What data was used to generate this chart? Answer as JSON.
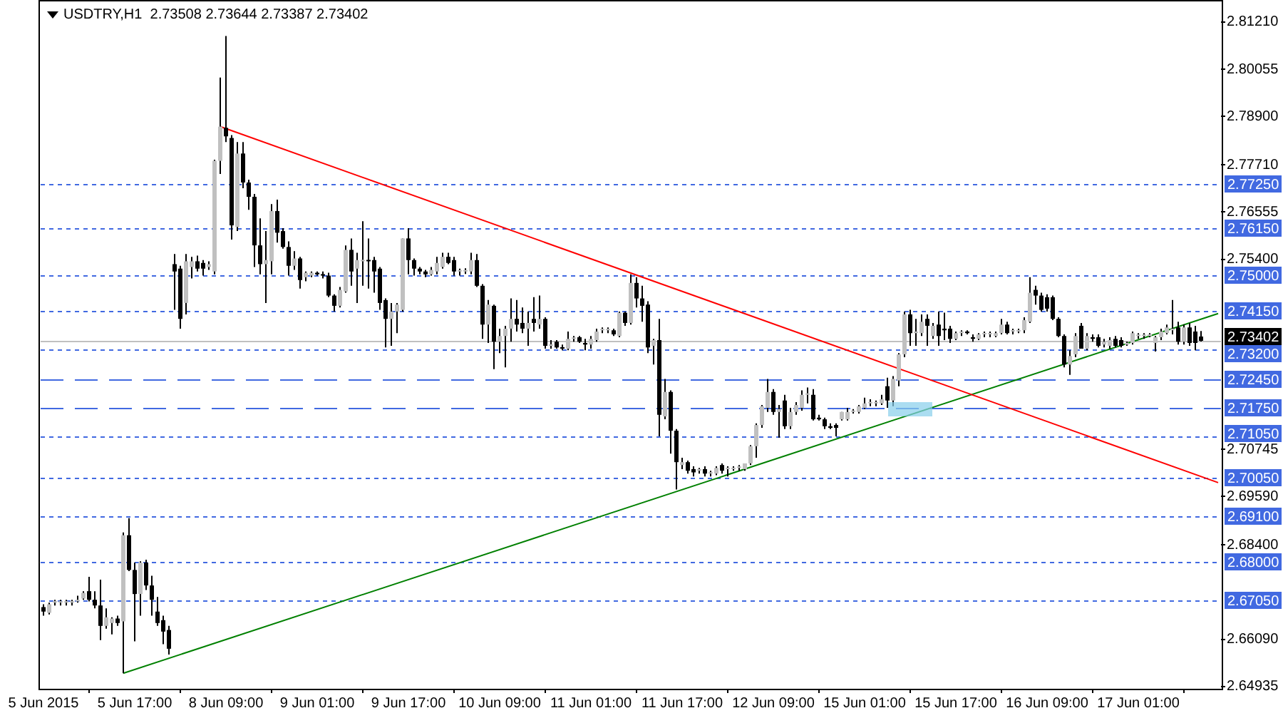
{
  "chart_data": {
    "type": "candlestick",
    "title": "USDTRY,H1  2.73508 2.73644 2.73387 2.73402",
    "categories": [
      "5 Jun 2015",
      null,
      null,
      null,
      null,
      null,
      null,
      null,
      null,
      null,
      null,
      null,
      null,
      null,
      null,
      null,
      "5 Jun 17:00",
      null,
      null,
      null,
      null,
      null,
      null,
      null,
      null,
      null,
      null,
      null,
      null,
      null,
      null,
      null,
      "8 Jun 09:00",
      null,
      null,
      null,
      null,
      null,
      null,
      null,
      null,
      null,
      null,
      null,
      null,
      null,
      null,
      null,
      "9 Jun 01:00",
      null,
      null,
      null,
      null,
      null,
      null,
      null,
      null,
      null,
      null,
      null,
      null,
      null,
      null,
      null,
      "9 Jun 17:00",
      null,
      null,
      null,
      null,
      null,
      null,
      null,
      null,
      null,
      null,
      null,
      null,
      null,
      null,
      null,
      "10 Jun 09:00",
      null,
      null,
      null,
      null,
      null,
      null,
      null,
      null,
      null,
      null,
      null,
      null,
      null,
      null,
      null,
      "11 Jun 01:00",
      null,
      null,
      null,
      null,
      null,
      null,
      null,
      null,
      null,
      null,
      null,
      null,
      null,
      null,
      null,
      "11 Jun 17:00",
      null,
      null,
      null,
      null,
      null,
      null,
      null,
      null,
      null,
      null,
      null,
      null,
      null,
      null,
      null,
      "12 Jun 09:00",
      null,
      null,
      null,
      null,
      null,
      null,
      null,
      null,
      null,
      null,
      null,
      null,
      null,
      null,
      null,
      "15 Jun 01:00",
      null,
      null,
      null,
      null,
      null,
      null,
      null,
      null,
      null,
      null,
      null,
      null,
      null,
      null,
      null,
      "15 Jun 17:00",
      null,
      null,
      null,
      null,
      null,
      null,
      null,
      null,
      null,
      null,
      null,
      null,
      null,
      null,
      null,
      "16 Jun 09:00",
      null,
      null,
      null,
      null,
      null,
      null,
      null,
      null,
      null,
      null,
      null,
      null,
      null,
      null,
      null,
      "17 Jun 01:00",
      null,
      null,
      null,
      null,
      null,
      null,
      null,
      null,
      null,
      null,
      null,
      null,
      null,
      null
    ],
    "ohlc": [
      [
        2.6688,
        2.6695,
        2.6667,
        2.6677
      ],
      [
        2.6674,
        2.6699,
        2.667,
        2.6695
      ],
      [
        2.6699,
        2.6706,
        2.6692,
        2.6699
      ],
      [
        2.6699,
        2.6706,
        2.6692,
        2.6699
      ],
      [
        2.6699,
        2.6706,
        2.6692,
        2.67
      ],
      [
        2.6699,
        2.6706,
        2.6692,
        2.6702
      ],
      [
        2.6702,
        2.6716,
        2.6699,
        2.6706
      ],
      [
        2.6709,
        2.6727,
        2.6706,
        2.6723
      ],
      [
        2.6727,
        2.6762,
        2.6702,
        2.6706
      ],
      [
        2.6706,
        2.6727,
        2.6685,
        2.6692
      ],
      [
        2.6692,
        2.6755,
        2.6607,
        2.6642
      ],
      [
        2.6642,
        2.6685,
        2.6635,
        2.6663
      ],
      [
        2.6649,
        2.6663,
        2.6621,
        2.666
      ],
      [
        2.666,
        2.6667,
        2.6642,
        2.6649
      ],
      [
        2.6653,
        2.6871,
        2.6526,
        2.6864
      ],
      [
        2.6864,
        2.6906,
        2.6776,
        2.6779
      ],
      [
        2.6779,
        2.6797,
        2.6604,
        2.672
      ],
      [
        2.672,
        2.68,
        2.6667,
        2.6797
      ],
      [
        2.6797,
        2.6804,
        2.673,
        2.6741
      ],
      [
        2.6741,
        2.6765,
        2.6667,
        2.6706
      ],
      [
        2.6677,
        2.6713,
        2.6642,
        2.6649
      ],
      [
        2.6656,
        2.6667,
        2.6597,
        2.6628
      ],
      [
        2.6632,
        2.6642,
        2.6572,
        2.6586
      ],
      [
        2.7528,
        2.7553,
        2.7416,
        2.751
      ],
      [
        2.7517,
        2.7524,
        2.737,
        2.7394
      ],
      [
        2.7433,
        2.7553,
        2.7405,
        2.7535
      ],
      [
        2.7521,
        2.7546,
        2.7493,
        2.7535
      ],
      [
        2.7535,
        2.7549,
        2.751,
        2.7517
      ],
      [
        2.7531,
        2.7538,
        2.75,
        2.7517
      ],
      [
        2.7521,
        2.7535,
        2.7514,
        2.7528
      ],
      [
        2.751,
        2.7784,
        2.7503,
        2.7781
      ],
      [
        2.7781,
        2.7985,
        2.7749,
        2.7865
      ],
      [
        2.7862,
        2.8087,
        2.7827,
        2.7841
      ],
      [
        2.7837,
        2.7844,
        2.7588,
        2.7623
      ],
      [
        2.7619,
        2.7827,
        2.7609,
        2.7799
      ],
      [
        2.7799,
        2.7827,
        2.7714,
        2.7728
      ],
      [
        2.7728,
        2.7735,
        2.7661,
        2.7693
      ],
      [
        2.7693,
        2.77,
        2.7521,
        2.7574
      ],
      [
        2.7574,
        2.764,
        2.7503,
        2.7528
      ],
      [
        2.7528,
        2.7609,
        2.7433,
        2.7538
      ],
      [
        2.7535,
        2.7675,
        2.7503,
        2.7658
      ],
      [
        2.7658,
        2.7686,
        2.7581,
        2.7605
      ],
      [
        2.7609,
        2.7616,
        2.7566,
        2.757
      ],
      [
        2.757,
        2.7584,
        2.75,
        2.7524
      ],
      [
        2.7524,
        2.756,
        2.7514,
        2.7542
      ],
      [
        2.7542,
        2.7546,
        2.7468,
        2.7489
      ],
      [
        2.7496,
        2.751,
        2.7486,
        2.7507
      ],
      [
        2.75,
        2.751,
        2.7496,
        2.7507
      ],
      [
        2.7507,
        2.751,
        2.75,
        2.7503
      ],
      [
        2.7503,
        2.751,
        2.7493,
        2.75
      ],
      [
        2.75,
        2.7507,
        2.7447,
        2.7451
      ],
      [
        2.7451,
        2.7454,
        2.7412,
        2.7426
      ],
      [
        2.7426,
        2.7472,
        2.7422,
        2.7465
      ],
      [
        2.7461,
        2.7574,
        2.7458,
        2.7563
      ],
      [
        2.7563,
        2.7591,
        2.7475,
        2.751
      ],
      [
        2.7517,
        2.7556,
        2.7433,
        2.7538
      ],
      [
        2.7535,
        2.7633,
        2.7475,
        2.7538
      ],
      [
        2.7538,
        2.7591,
        2.7468,
        2.7535
      ],
      [
        2.7538,
        2.7546,
        2.7458,
        2.751
      ],
      [
        2.7517,
        2.7521,
        2.7416,
        2.7433
      ],
      [
        2.744,
        2.7444,
        2.7324,
        2.7394
      ],
      [
        2.7394,
        2.7433,
        2.7328,
        2.7412
      ],
      [
        2.7412,
        2.7433,
        2.7359,
        2.7429
      ],
      [
        2.7416,
        2.7591,
        2.7412,
        2.7591
      ],
      [
        2.7591,
        2.7616,
        2.7503,
        2.7538
      ],
      [
        2.7538,
        2.7542,
        2.75,
        2.7517
      ],
      [
        2.7517,
        2.7521,
        2.7503,
        2.751
      ],
      [
        2.751,
        2.7514,
        2.7496,
        2.7503
      ],
      [
        2.7503,
        2.7521,
        2.75,
        2.7514
      ],
      [
        2.751,
        2.7546,
        2.7503,
        2.7531
      ],
      [
        2.7521,
        2.7556,
        2.7517,
        2.7546
      ],
      [
        2.7546,
        2.7556,
        2.7528,
        2.7531
      ],
      [
        2.7538,
        2.7546,
        2.75,
        2.751
      ],
      [
        2.751,
        2.7517,
        2.75,
        2.751
      ],
      [
        2.751,
        2.7518,
        2.7504,
        2.751
      ],
      [
        2.751,
        2.7556,
        2.7503,
        2.7538
      ],
      [
        2.7538,
        2.7553,
        2.7472,
        2.7475
      ],
      [
        2.7475,
        2.7479,
        2.7345,
        2.738
      ],
      [
        2.738,
        2.744,
        2.7335,
        2.7429
      ],
      [
        2.7426,
        2.7429,
        2.7271,
        2.7338
      ],
      [
        2.7338,
        2.737,
        2.731,
        2.7352
      ],
      [
        2.7352,
        2.7377,
        2.7275,
        2.737
      ],
      [
        2.737,
        2.7444,
        2.7338,
        2.7394
      ],
      [
        2.7394,
        2.744,
        2.7363,
        2.738
      ],
      [
        2.7384,
        2.7422,
        2.7359,
        2.737
      ],
      [
        2.737,
        2.7412,
        2.7328,
        2.7384
      ],
      [
        2.7394,
        2.7447,
        2.7363,
        2.7384
      ],
      [
        2.738,
        2.7451,
        2.737,
        2.7394
      ],
      [
        2.7394,
        2.7398,
        2.7321,
        2.7328
      ],
      [
        2.7328,
        2.7342,
        2.7321,
        2.7331
      ],
      [
        2.7338,
        2.7342,
        2.7321,
        2.7324
      ],
      [
        2.7324,
        2.7331,
        2.7317,
        2.7321
      ],
      [
        2.7321,
        2.7363,
        2.7317,
        2.7345
      ],
      [
        2.7345,
        2.7352,
        2.7338,
        2.7345
      ],
      [
        2.7349,
        2.7352,
        2.7335,
        2.7338
      ],
      [
        2.7335,
        2.7345,
        2.7317,
        2.7331
      ],
      [
        2.7331,
        2.7352,
        2.7321,
        2.7345
      ],
      [
        2.7342,
        2.737,
        2.7338,
        2.7363
      ],
      [
        2.7366,
        2.7373,
        2.7359,
        2.7366
      ],
      [
        2.7366,
        2.7373,
        2.7359,
        2.7366
      ],
      [
        2.7366,
        2.737,
        2.7352,
        2.7356
      ],
      [
        2.7352,
        2.7412,
        2.7349,
        2.7409
      ],
      [
        2.7409,
        2.7412,
        2.7377,
        2.7384
      ],
      [
        2.7384,
        2.7503,
        2.738,
        2.7482
      ],
      [
        2.7482,
        2.7496,
        2.7422,
        2.7444
      ],
      [
        2.7444,
        2.7475,
        2.7387,
        2.7426
      ],
      [
        2.7429,
        2.7437,
        2.731,
        2.7324
      ],
      [
        2.7328,
        2.7345,
        2.7282,
        2.7342
      ],
      [
        2.7342,
        2.7394,
        2.7106,
        2.7159
      ],
      [
        2.7155,
        2.7247,
        2.7148,
        2.7215
      ],
      [
        2.7215,
        2.7219,
        2.7064,
        2.712
      ],
      [
        2.712,
        2.7124,
        2.6976,
        2.7043
      ],
      [
        2.7036,
        2.7054,
        2.7026,
        2.7043
      ],
      [
        2.7043,
        2.7047,
        2.7015,
        2.7022
      ],
      [
        2.7026,
        2.7033,
        2.7008,
        2.7018
      ],
      [
        2.7022,
        2.7029,
        2.7015,
        2.7026
      ],
      [
        2.7026,
        2.7033,
        2.7008,
        2.7015
      ],
      [
        2.7015,
        2.7022,
        2.7008,
        2.7018
      ],
      [
        2.7015,
        2.7033,
        2.7011,
        2.7029
      ],
      [
        2.7036,
        2.704,
        2.7015,
        2.7022
      ],
      [
        2.7026,
        2.7033,
        2.7008,
        2.7026
      ],
      [
        2.7026,
        2.7033,
        2.7022,
        2.7029
      ],
      [
        2.7029,
        2.7036,
        2.7022,
        2.7029
      ],
      [
        2.7026,
        2.704,
        2.7022,
        2.704
      ],
      [
        2.704,
        2.7085,
        2.7036,
        2.7082
      ],
      [
        2.7082,
        2.7138,
        2.7054,
        2.7134
      ],
      [
        2.7134,
        2.7183,
        2.7127,
        2.718
      ],
      [
        2.7176,
        2.7247,
        2.7166,
        2.7215
      ],
      [
        2.7215,
        2.7222,
        2.7159,
        2.7166
      ],
      [
        2.7166,
        2.7183,
        2.7103,
        2.7173
      ],
      [
        2.7194,
        2.7208,
        2.7124,
        2.7131
      ],
      [
        2.7131,
        2.7176,
        2.7124,
        2.7166
      ],
      [
        2.7166,
        2.719,
        2.7159,
        2.7183
      ],
      [
        2.7176,
        2.7219,
        2.7169,
        2.7208
      ],
      [
        2.7208,
        2.7226,
        2.7187,
        2.7208
      ],
      [
        2.7208,
        2.7222,
        2.7145,
        2.7148
      ],
      [
        2.7152,
        2.7159,
        2.7145,
        2.7148
      ],
      [
        2.7148,
        2.7152,
        2.7124,
        2.7131
      ],
      [
        2.7131,
        2.7138,
        2.7124,
        2.7127
      ],
      [
        2.7134,
        2.7138,
        2.7106,
        2.7127
      ],
      [
        2.7148,
        2.7166,
        2.7145,
        2.7166
      ],
      [
        2.7148,
        2.7176,
        2.7145,
        2.7166
      ],
      [
        2.7166,
        2.7173,
        2.7162,
        2.7169
      ],
      [
        2.7166,
        2.7183,
        2.7162,
        2.718
      ],
      [
        2.7176,
        2.7201,
        2.7173,
        2.7187
      ],
      [
        2.7187,
        2.7197,
        2.718,
        2.7187
      ],
      [
        2.7187,
        2.7194,
        2.718,
        2.719
      ],
      [
        2.7187,
        2.7208,
        2.7183,
        2.7197
      ],
      [
        2.7229,
        2.725,
        2.7176,
        2.7194
      ],
      [
        2.7194,
        2.7254,
        2.718,
        2.7247
      ],
      [
        2.7243,
        2.731,
        2.7229,
        2.7307
      ],
      [
        2.7307,
        2.7412,
        2.73,
        2.7405
      ],
      [
        2.7405,
        2.7416,
        2.7328,
        2.7359
      ],
      [
        2.7359,
        2.7394,
        2.7328,
        2.7363
      ],
      [
        2.7359,
        2.7405,
        2.7352,
        2.7387
      ],
      [
        2.7394,
        2.7405,
        2.7328,
        2.7377
      ],
      [
        2.7352,
        2.7384,
        2.7345,
        2.7377
      ],
      [
        2.738,
        2.7412,
        2.7328,
        2.7352
      ],
      [
        2.737,
        2.7409,
        2.7342,
        2.7366
      ],
      [
        2.737,
        2.7377,
        2.7335,
        2.7345
      ],
      [
        2.7345,
        2.7363,
        2.7342,
        2.7359
      ],
      [
        2.7359,
        2.7366,
        2.7352,
        2.7363
      ],
      [
        2.7363,
        2.7366,
        2.7356,
        2.7359
      ],
      [
        2.7349,
        2.7356,
        2.7338,
        2.7345
      ],
      [
        2.7345,
        2.7359,
        2.7342,
        2.7356
      ],
      [
        2.7356,
        2.7363,
        2.7349,
        2.7356
      ],
      [
        2.7356,
        2.7363,
        2.7349,
        2.7356
      ],
      [
        2.7352,
        2.7363,
        2.7349,
        2.7359
      ],
      [
        2.7359,
        2.7394,
        2.7356,
        2.738
      ],
      [
        2.738,
        2.7387,
        2.7356,
        2.7359
      ],
      [
        2.7363,
        2.737,
        2.7356,
        2.7363
      ],
      [
        2.7363,
        2.737,
        2.7359,
        2.7366
      ],
      [
        2.7366,
        2.7398,
        2.7359,
        2.7391
      ],
      [
        2.7387,
        2.7496,
        2.7384,
        2.7458
      ],
      [
        2.7465,
        2.7475,
        2.7429,
        2.7451
      ],
      [
        2.7451,
        2.7458,
        2.7412,
        2.7416
      ],
      [
        2.7447,
        2.7454,
        2.7412,
        2.7419
      ],
      [
        2.7447,
        2.7451,
        2.7391,
        2.7394
      ],
      [
        2.7394,
        2.7398,
        2.7349,
        2.7352
      ],
      [
        2.7352,
        2.7356,
        2.7275,
        2.7282
      ],
      [
        2.7282,
        2.7317,
        2.7257,
        2.7303
      ],
      [
        2.7307,
        2.7359,
        2.73,
        2.7352
      ],
      [
        2.7377,
        2.7384,
        2.7321,
        2.7321
      ],
      [
        2.7321,
        2.7359,
        2.7317,
        2.7352
      ],
      [
        2.7349,
        2.7356,
        2.7338,
        2.7345
      ],
      [
        2.7349,
        2.7356,
        2.7324,
        2.7328
      ],
      [
        2.7331,
        2.7345,
        2.7324,
        2.7338
      ],
      [
        2.7328,
        2.7349,
        2.7321,
        2.7342
      ],
      [
        2.7345,
        2.7352,
        2.7324,
        2.7328
      ],
      [
        2.7342,
        2.7349,
        2.7324,
        2.7328
      ],
      [
        2.7331,
        2.7338,
        2.7328,
        2.7335
      ],
      [
        2.7335,
        2.7363,
        2.7331,
        2.7359
      ],
      [
        2.7352,
        2.7359,
        2.7345,
        2.7352
      ],
      [
        2.7352,
        2.7359,
        2.7345,
        2.7352
      ],
      [
        2.7352,
        2.7359,
        2.7349,
        2.7356
      ],
      [
        2.7335,
        2.7352,
        2.7314,
        2.7349
      ],
      [
        2.7349,
        2.737,
        2.7342,
        2.7363
      ],
      [
        2.7359,
        2.738,
        2.7356,
        2.7373
      ],
      [
        2.7366,
        2.744,
        2.7356,
        2.737
      ],
      [
        2.7373,
        2.7387,
        2.7331,
        2.7338
      ],
      [
        2.7338,
        2.738,
        2.7331,
        2.7373
      ],
      [
        2.7373,
        2.7384,
        2.7328,
        2.7335
      ],
      [
        2.7363,
        2.7377,
        2.7317,
        2.7335
      ],
      [
        2.73508,
        2.73644,
        2.73387,
        2.73402
      ],
      null,
      null,
      null
    ],
    "color": "#000000",
    "colors": [
      "#000000",
      "#c0c0c0",
      "#c0c0c0",
      "#c0c0c0",
      "#c0c0c0",
      "#c0c0c0",
      "#c0c0c0",
      "#c0c0c0",
      "#000000",
      "#000000",
      "#000000",
      "#c0c0c0",
      "#c0c0c0",
      "#000000",
      "#c0c0c0",
      "#000000",
      "#000000",
      "#c0c0c0",
      "#000000",
      "#000000",
      "#000000",
      "#000000",
      "#000000",
      "#000000",
      "#000000",
      "#c0c0c0",
      "#c0c0c0",
      "#000000",
      "#000000",
      "#c0c0c0",
      "#c0c0c0",
      "#c0c0c0",
      "#000000",
      "#000000",
      "#c0c0c0",
      "#000000",
      "#000000",
      "#000000",
      "#000000",
      "#c0c0c0",
      "#c0c0c0",
      "#000000",
      "#000000",
      "#000000",
      "#c0c0c0",
      "#000000",
      "#c0c0c0",
      "#c0c0c0",
      "#000000",
      "#000000",
      "#000000",
      "#000000",
      "#c0c0c0",
      "#c0c0c0",
      "#000000",
      "#c0c0c0",
      "#c0c0c0",
      "#000000",
      "#000000",
      "#000000",
      "#000000",
      "#c0c0c0",
      "#c0c0c0",
      "#c0c0c0",
      "#000000",
      "#000000",
      "#000000",
      "#000000",
      "#c0c0c0",
      "#c0c0c0",
      "#c0c0c0",
      "#000000",
      "#000000",
      "#c0c0c0",
      "#c0c0c0",
      "#c0c0c0",
      "#000000",
      "#000000",
      "#c0c0c0",
      "#000000",
      "#c0c0c0",
      "#c0c0c0",
      "#c0c0c0",
      "#000000",
      "#000000",
      "#c0c0c0",
      "#000000",
      "#c0c0c0",
      "#000000",
      "#c0c0c0",
      "#000000",
      "#000000",
      "#c0c0c0",
      "#c0c0c0",
      "#000000",
      "#000000",
      "#c0c0c0",
      "#c0c0c0",
      "#c0c0c0",
      "#c0c0c0",
      "#000000",
      "#c0c0c0",
      "#000000",
      "#c0c0c0",
      "#000000",
      "#000000",
      "#000000",
      "#c0c0c0",
      "#000000",
      "#c0c0c0",
      "#000000",
      "#000000",
      "#c0c0c0",
      "#000000",
      "#000000",
      "#c0c0c0",
      "#000000",
      "#c0c0c0",
      "#c0c0c0",
      "#000000",
      "#c0c0c0",
      "#c0c0c0",
      "#c0c0c0",
      "#c0c0c0",
      "#c0c0c0",
      "#c0c0c0",
      "#c0c0c0",
      "#c0c0c0",
      "#000000",
      "#c0c0c0",
      "#000000",
      "#c0c0c0",
      "#c0c0c0",
      "#c0c0c0",
      "#c0c0c0",
      "#000000",
      "#000000",
      "#000000",
      "#000000",
      "#000000",
      "#c0c0c0",
      "#c0c0c0",
      "#c0c0c0",
      "#c0c0c0",
      "#c0c0c0",
      "#c0c0c0",
      "#c0c0c0",
      "#c0c0c0",
      "#000000",
      "#c0c0c0",
      "#c0c0c0",
      "#c0c0c0",
      "#000000",
      "#c0c0c0",
      "#c0c0c0",
      "#000000",
      "#c0c0c0",
      "#000000",
      "#000000",
      "#000000",
      "#c0c0c0",
      "#c0c0c0",
      "#000000",
      "#000000",
      "#c0c0c0",
      "#c0c0c0",
      "#c0c0c0",
      "#c0c0c0",
      "#c0c0c0",
      "#000000",
      "#c0c0c0",
      "#c0c0c0",
      "#c0c0c0",
      "#c0c0c0",
      "#000000",
      "#000000",
      "#000000",
      "#000000",
      "#000000",
      "#000000",
      "#c0c0c0",
      "#c0c0c0",
      "#000000",
      "#c0c0c0",
      "#000000",
      "#000000",
      "#c0c0c0",
      "#c0c0c0",
      "#000000",
      "#000000",
      "#c0c0c0",
      "#c0c0c0",
      "#c0c0c0",
      "#c0c0c0",
      "#c0c0c0",
      "#c0c0c0",
      "#c0c0c0",
      "#c0c0c0",
      "#c0c0c0",
      "#000000",
      "#c0c0c0",
      "#000000",
      "#000000",
      "#000000",
      null,
      null,
      null
    ],
    "series": [
      {
        "type": "line",
        "color": "#ff0000",
        "values": [
          null,
          null,
          null,
          null,
          null,
          null,
          null,
          null,
          null,
          null,
          null,
          null,
          null,
          null,
          null,
          null,
          null,
          null,
          null,
          null,
          null,
          null,
          null,
          null,
          null,
          null,
          null,
          null,
          null,
          null,
          null,
          2.7865,
          null,
          null,
          null,
          null,
          null,
          null,
          null,
          null,
          null,
          null,
          null,
          null,
          null,
          null,
          null,
          null,
          null,
          null,
          null,
          null,
          null,
          null,
          null,
          null,
          null,
          null,
          null,
          null,
          null,
          null,
          null,
          null,
          null,
          null,
          null,
          null,
          null,
          null,
          null,
          null,
          null,
          null,
          null,
          null,
          null,
          null,
          null,
          null,
          null,
          null,
          null,
          null,
          null,
          null,
          null,
          null,
          null,
          null,
          null,
          null,
          null,
          null,
          null,
          null,
          null,
          null,
          null,
          null,
          null,
          null,
          null,
          null,
          null,
          null,
          null,
          null,
          null,
          null,
          null,
          null,
          null,
          null,
          null,
          null,
          null,
          null,
          null,
          null,
          null,
          null,
          null,
          null,
          null,
          null,
          null,
          null,
          null,
          null,
          null,
          null,
          null,
          null,
          null,
          null,
          null,
          null,
          null,
          null,
          null,
          null,
          null,
          null,
          null,
          null,
          null,
          null,
          null,
          null,
          null,
          null,
          null,
          null,
          null,
          null,
          null,
          null,
          null,
          null,
          null,
          null,
          null,
          null,
          null,
          null,
          null,
          null,
          null,
          null,
          null,
          null,
          null,
          null,
          null,
          null,
          null,
          null,
          null,
          null,
          null,
          null,
          null,
          null,
          null,
          null,
          null,
          null,
          null,
          null,
          null,
          null,
          null,
          null,
          null,
          null,
          null,
          null,
          null,
          null,
          null,
          null,
          null,
          null,
          null,
          null,
          2.6993
        ]
      },
      {
        "type": "line",
        "color": "#008000",
        "values": [
          null,
          null,
          null,
          null,
          null,
          null,
          null,
          null,
          null,
          null,
          null,
          null,
          null,
          null,
          2.6526,
          null,
          null,
          null,
          null,
          null,
          null,
          null,
          null,
          null,
          null,
          null,
          null,
          null,
          null,
          null,
          null,
          null,
          null,
          null,
          null,
          null,
          null,
          null,
          null,
          null,
          null,
          null,
          null,
          null,
          null,
          null,
          null,
          null,
          null,
          null,
          null,
          null,
          null,
          null,
          null,
          null,
          null,
          null,
          null,
          null,
          null,
          null,
          null,
          null,
          null,
          null,
          null,
          null,
          null,
          null,
          null,
          null,
          null,
          null,
          null,
          null,
          null,
          null,
          null,
          null,
          null,
          null,
          null,
          null,
          null,
          null,
          null,
          null,
          null,
          null,
          null,
          null,
          null,
          null,
          null,
          null,
          null,
          null,
          null,
          null,
          null,
          null,
          null,
          null,
          null,
          null,
          null,
          null,
          null,
          null,
          null,
          null,
          null,
          null,
          null,
          null,
          null,
          null,
          null,
          null,
          null,
          null,
          null,
          null,
          null,
          null,
          null,
          null,
          null,
          null,
          null,
          null,
          null,
          null,
          null,
          null,
          null,
          null,
          null,
          null,
          null,
          null,
          null,
          null,
          null,
          null,
          null,
          null,
          null,
          null,
          null,
          null,
          null,
          null,
          null,
          null,
          null,
          null,
          null,
          null,
          null,
          null,
          null,
          null,
          null,
          null,
          null,
          null,
          null,
          null,
          null,
          null,
          null,
          null,
          null,
          null,
          null,
          null,
          null,
          null,
          null,
          null,
          null,
          null,
          null,
          null,
          null,
          null,
          null,
          null,
          null,
          null,
          null,
          null,
          null,
          null,
          null,
          null,
          null,
          null,
          null,
          null,
          null,
          null,
          null,
          null,
          2.7407
        ]
      }
    ],
    "ylim": [
      2.6488,
      2.8175
    ],
    "yticks": [
      {
        "value": 2.8121,
        "label": "2.81210"
      },
      2.80055,
      {
        "value": 2.789,
        "label": "2.78900"
      },
      {
        "value": 2.7771,
        "label": "2.77710"
      },
      2.76555,
      {
        "value": 2.754,
        "label": "2.75400"
      },
      2.70745,
      {
        "value": 2.6959,
        "label": "2.69590"
      },
      {
        "value": 2.684,
        "label": "2.68400"
      },
      {
        "value": 2.6609,
        "label": "2.66090"
      },
      2.64935
    ],
    "ref_lines": [
      {
        "axis": "y",
        "value": 2.7725,
        "label": "2.77250",
        "color": "#4169e1",
        "line_style": "dotted"
      },
      {
        "axis": "y",
        "value": 2.7615,
        "label": "2.76150",
        "color": "#4169e1",
        "line_style": "dotted"
      },
      {
        "axis": "y",
        "value": 2.75,
        "label": "2.75000",
        "color": "#4169e1",
        "line_style": "dotted"
      },
      {
        "axis": "y",
        "value": 2.7415,
        "label": "2.74150",
        "color": "#4169e1",
        "line_style": "dotted"
      },
      {
        "axis": "y",
        "value": 2.73402,
        "label": "2.73402",
        "color": "#c0c0c0",
        "line_style": "solid"
      },
      {
        "axis": "y",
        "value": 2.732,
        "label": "2.73200",
        "color": "#4169e1",
        "line_style": "dotted"
      },
      {
        "axis": "y",
        "value": 2.7245,
        "label": "2.72450",
        "color": "#4169e1",
        "line_style": "dashed"
      },
      {
        "axis": "y",
        "value": 2.7175,
        "label": "2.71750",
        "color": "#4169e1",
        "line_style": "dashed"
      },
      {
        "axis": "y",
        "value": 2.7105,
        "label": "2.71050",
        "color": "#4169e1",
        "line_style": "dotted"
      },
      {
        "axis": "y",
        "value": 2.7005,
        "label": "2.70050",
        "color": "#4169e1",
        "line_style": "dotted"
      },
      {
        "axis": "y",
        "value": 2.691,
        "label": "2.69100",
        "color": "#4169e1",
        "line_style": "dotted"
      },
      {
        "axis": "y",
        "value": 2.68,
        "label": "2.68000",
        "color": "#4169e1",
        "line_style": "dotted"
      },
      {
        "axis": "y",
        "value": 2.6705,
        "label": "2.67050",
        "color": "#4169e1",
        "line_style": "dotted"
      }
    ]
  }
}
